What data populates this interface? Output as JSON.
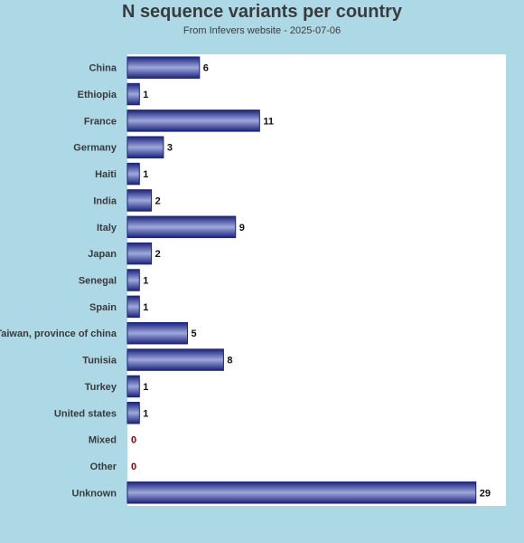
{
  "chart_data": {
    "type": "bar",
    "orientation": "horizontal",
    "title": "N sequence variants per country",
    "subtitle": "From Infevers website - 2025-07-06",
    "categories": [
      "China",
      "Ethiopia",
      "France",
      "Germany",
      "Haiti",
      "India",
      "Italy",
      "Japan",
      "Senegal",
      "Spain",
      "Taiwan, province of china",
      "Tunisia",
      "Turkey",
      "United states",
      "Mixed",
      "Other",
      "Unknown"
    ],
    "values": [
      6,
      1,
      11,
      3,
      1,
      2,
      9,
      2,
      1,
      1,
      5,
      8,
      1,
      1,
      0,
      0,
      29
    ],
    "xlim": [
      0,
      31.5
    ],
    "grid": false,
    "colors": {
      "bar_dark": "#1a237e",
      "bar_light": "#9fa8da",
      "zero_label": "#8b0000",
      "background": "#add8e6",
      "plot_background": "#ffffff"
    }
  }
}
